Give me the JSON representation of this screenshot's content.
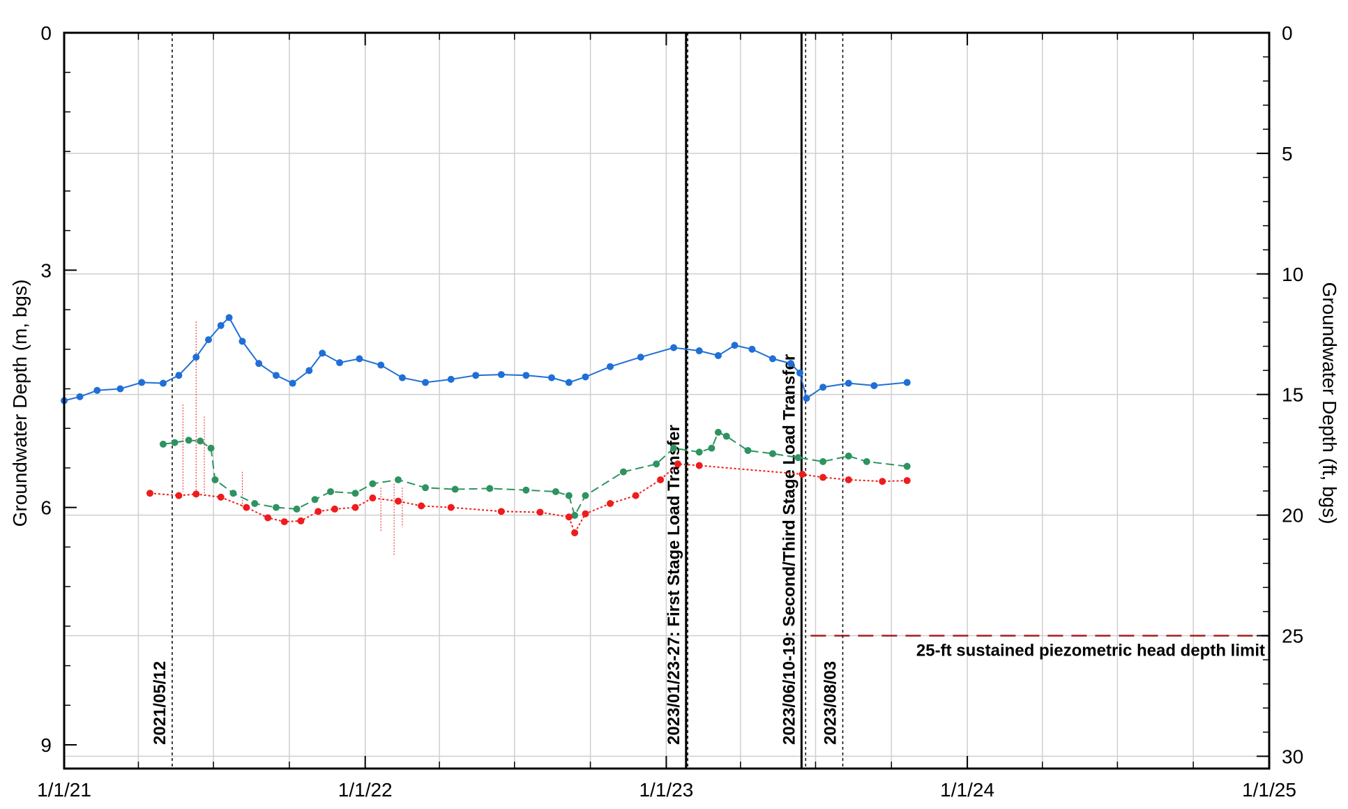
{
  "chart_data": {
    "type": "line",
    "title": "",
    "xlabel": "",
    "ylabel": "Groundwater Depth (m, bgs)",
    "y2label": "Groundwater Depth (ft, bgs)",
    "x_axis": {
      "type": "date",
      "range": [
        "2021-01-01",
        "2025-01-01"
      ],
      "tick_labels": [
        {
          "date": "2021-01-01",
          "label": "1/1/21"
        },
        {
          "date": "2022-01-01",
          "label": "1/1/22"
        },
        {
          "date": "2023-01-01",
          "label": "1/1/23"
        },
        {
          "date": "2024-01-01",
          "label": "1/1/24"
        },
        {
          "date": "2025-01-01",
          "label": "1/1/25"
        }
      ],
      "minor_gridlines": "quarterly"
    },
    "y_axis": {
      "range": [
        0,
        9.3
      ],
      "inverted": true,
      "ticks": [
        0,
        3,
        6,
        9
      ],
      "tick_labels": [
        "0",
        "3",
        "6",
        "9"
      ],
      "minor_step": 0.5
    },
    "y2_axis": {
      "range": [
        0,
        30.51
      ],
      "inverted": true,
      "ticks": [
        0,
        5,
        10,
        15,
        20,
        25,
        30
      ],
      "tick_labels": [
        "0",
        "5",
        "10",
        "15",
        "20",
        "25",
        "30"
      ],
      "minor_step": 1
    },
    "grid": true,
    "legend": "none",
    "series": [
      {
        "color": "#1f6fd6",
        "style": "solid-with-markers",
        "points": [
          [
            "2021-01-01",
            4.65
          ],
          [
            "2021-01-20",
            4.6
          ],
          [
            "2021-02-10",
            4.52
          ],
          [
            "2021-03-10",
            4.5
          ],
          [
            "2021-04-05",
            4.42
          ],
          [
            "2021-05-01",
            4.43
          ],
          [
            "2021-05-20",
            4.33
          ],
          [
            "2021-06-10",
            4.1
          ],
          [
            "2021-06-25",
            3.88
          ],
          [
            "2021-07-10",
            3.7
          ],
          [
            "2021-07-20",
            3.6
          ],
          [
            "2021-08-05",
            3.9
          ],
          [
            "2021-08-25",
            4.18
          ],
          [
            "2021-09-15",
            4.33
          ],
          [
            "2021-10-05",
            4.43
          ],
          [
            "2021-10-25",
            4.27
          ],
          [
            "2021-11-10",
            4.05
          ],
          [
            "2021-12-01",
            4.17
          ],
          [
            "2021-12-25",
            4.12
          ],
          [
            "2022-01-20",
            4.2
          ],
          [
            "2022-02-15",
            4.36
          ],
          [
            "2022-03-15",
            4.42
          ],
          [
            "2022-04-15",
            4.38
          ],
          [
            "2022-05-15",
            4.33
          ],
          [
            "2022-06-15",
            4.32
          ],
          [
            "2022-07-15",
            4.33
          ],
          [
            "2022-08-15",
            4.36
          ],
          [
            "2022-09-05",
            4.42
          ],
          [
            "2022-09-25",
            4.35
          ],
          [
            "2022-10-25",
            4.22
          ],
          [
            "2022-12-01",
            4.1
          ],
          [
            "2023-01-10",
            3.98
          ],
          [
            "2023-02-10",
            4.02
          ],
          [
            "2023-03-05",
            4.08
          ],
          [
            "2023-03-25",
            3.95
          ],
          [
            "2023-04-15",
            4.0
          ],
          [
            "2023-05-10",
            4.12
          ],
          [
            "2023-06-01",
            4.18
          ],
          [
            "2023-06-12",
            4.3
          ],
          [
            "2023-06-20",
            4.62
          ],
          [
            "2023-07-10",
            4.48
          ],
          [
            "2023-08-10",
            4.43
          ],
          [
            "2023-09-10",
            4.46
          ],
          [
            "2023-10-20",
            4.42
          ]
        ]
      },
      {
        "color": "#2e9360",
        "style": "dashed-with-markers",
        "points": [
          [
            "2021-05-01",
            5.2
          ],
          [
            "2021-05-15",
            5.18
          ],
          [
            "2021-06-01",
            5.15
          ],
          [
            "2021-06-15",
            5.16
          ],
          [
            "2021-06-28",
            5.25
          ],
          [
            "2021-07-03",
            5.65
          ],
          [
            "2021-07-25",
            5.82
          ],
          [
            "2021-08-20",
            5.95
          ],
          [
            "2021-09-15",
            6.0
          ],
          [
            "2021-10-10",
            6.02
          ],
          [
            "2021-11-01",
            5.9
          ],
          [
            "2021-11-20",
            5.8
          ],
          [
            "2021-12-20",
            5.82
          ],
          [
            "2022-01-10",
            5.7
          ],
          [
            "2022-02-10",
            5.65
          ],
          [
            "2022-03-15",
            5.75
          ],
          [
            "2022-04-20",
            5.77
          ],
          [
            "2022-06-01",
            5.76
          ],
          [
            "2022-07-15",
            5.78
          ],
          [
            "2022-08-20",
            5.8
          ],
          [
            "2022-09-05",
            5.85
          ],
          [
            "2022-09-12",
            6.1
          ],
          [
            "2022-09-25",
            5.85
          ],
          [
            "2022-11-10",
            5.55
          ],
          [
            "2022-12-20",
            5.45
          ],
          [
            "2023-01-10",
            5.25
          ],
          [
            "2023-02-10",
            5.3
          ],
          [
            "2023-02-25",
            5.25
          ],
          [
            "2023-03-05",
            5.05
          ],
          [
            "2023-03-15",
            5.1
          ],
          [
            "2023-04-10",
            5.28
          ],
          [
            "2023-05-10",
            5.32
          ],
          [
            "2023-06-10",
            5.37
          ],
          [
            "2023-07-10",
            5.42
          ],
          [
            "2023-08-10",
            5.35
          ],
          [
            "2023-09-01",
            5.42
          ],
          [
            "2023-10-20",
            5.48
          ]
        ]
      },
      {
        "color": "#ee1c1c",
        "style": "dotted-with-markers",
        "points": [
          [
            "2021-04-15",
            5.82
          ],
          [
            "2021-05-20",
            5.85
          ],
          [
            "2021-06-10",
            5.83
          ],
          [
            "2021-07-10",
            5.87
          ],
          [
            "2021-08-10",
            6.0
          ],
          [
            "2021-09-05",
            6.13
          ],
          [
            "2021-09-25",
            6.18
          ],
          [
            "2021-10-15",
            6.17
          ],
          [
            "2021-11-05",
            6.05
          ],
          [
            "2021-11-25",
            6.02
          ],
          [
            "2021-12-20",
            6.0
          ],
          [
            "2022-01-10",
            5.88
          ],
          [
            "2022-02-10",
            5.92
          ],
          [
            "2022-03-10",
            5.98
          ],
          [
            "2022-04-15",
            6.0
          ],
          [
            "2022-06-15",
            6.05
          ],
          [
            "2022-08-01",
            6.06
          ],
          [
            "2022-09-05",
            6.12
          ],
          [
            "2022-09-12",
            6.32
          ],
          [
            "2022-09-25",
            6.08
          ],
          [
            "2022-10-25",
            5.95
          ],
          [
            "2022-11-25",
            5.85
          ],
          [
            "2022-12-25",
            5.65
          ],
          [
            "2023-01-15",
            5.45
          ],
          [
            "2023-02-10",
            5.47
          ],
          [
            "2023-06-15",
            5.58
          ],
          [
            "2023-07-10",
            5.62
          ],
          [
            "2023-08-10",
            5.65
          ],
          [
            "2023-09-20",
            5.67
          ],
          [
            "2023-10-20",
            5.66
          ]
        ]
      }
    ],
    "red_spikes": [
      {
        "date": "2021-05-25",
        "top": 4.7,
        "bottom": 5.8
      },
      {
        "date": "2021-06-10",
        "top": 3.65,
        "bottom": 5.85
      },
      {
        "date": "2021-06-20",
        "top": 4.85,
        "bottom": 5.86
      },
      {
        "date": "2021-08-05",
        "top": 5.55,
        "bottom": 6.0
      },
      {
        "date": "2022-01-20",
        "top": 5.75,
        "bottom": 6.3
      },
      {
        "date": "2022-02-05",
        "top": 5.7,
        "bottom": 6.6
      },
      {
        "date": "2022-02-15",
        "top": 5.75,
        "bottom": 6.25
      }
    ],
    "annotations": {
      "events": [
        {
          "date": "2021-05-12",
          "label": "2021/05/12",
          "style": "dotted"
        },
        {
          "date": "2023-01-25",
          "label": "2023/01/23-27: First Stage Load Transfer",
          "style": "solid"
        },
        {
          "date": "2023-01-27",
          "label": "",
          "style": "dotted"
        },
        {
          "date": "2023-06-14",
          "label": "2023/06/10-19: Second/Third Stage Load Transfer",
          "style": "solid"
        },
        {
          "date": "2023-06-19",
          "label": "",
          "style": "dotted"
        },
        {
          "date": "2023-08-03",
          "label": "2023/08/03",
          "style": "dotted"
        }
      ],
      "limit_line": {
        "depth_ft": 25,
        "start_date": "2023-06-25",
        "end_date": "2025-01-01",
        "color": "#a61c1c",
        "label": "25-ft sustained piezometric head depth limit"
      }
    }
  }
}
